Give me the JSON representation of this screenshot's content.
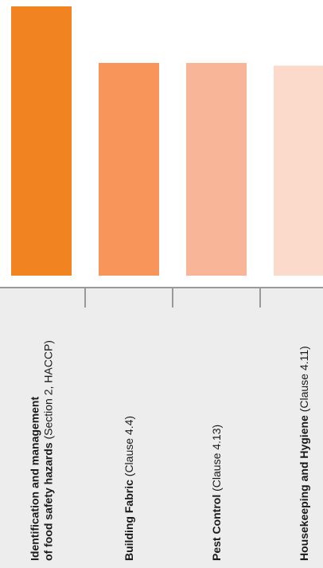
{
  "chart_data": {
    "type": "bar",
    "title": "",
    "xlabel": "",
    "ylabel": "",
    "categories": [
      {
        "bold": "Identification and management",
        "bold2": "of food safety hazards",
        "rest2": " (Section 2, HACCP)"
      },
      {
        "bold": "Building Fabric",
        "rest": " (Clause 4.4)"
      },
      {
        "bold": "Pest Control",
        "rest": " (Clause 4.13)"
      },
      {
        "bold": "Housekeeping and Hygiene",
        "rest": " (Clause 4.11)"
      }
    ],
    "values": [
      100,
      79,
      79,
      78
    ],
    "ylim": [
      0,
      100
    ],
    "grid": false,
    "colors": [
      "#F28321",
      "#F7955A",
      "#F8B597",
      "#FCDACB"
    ],
    "label_band_color": "#EDEDED",
    "axis_color": "#999999"
  }
}
